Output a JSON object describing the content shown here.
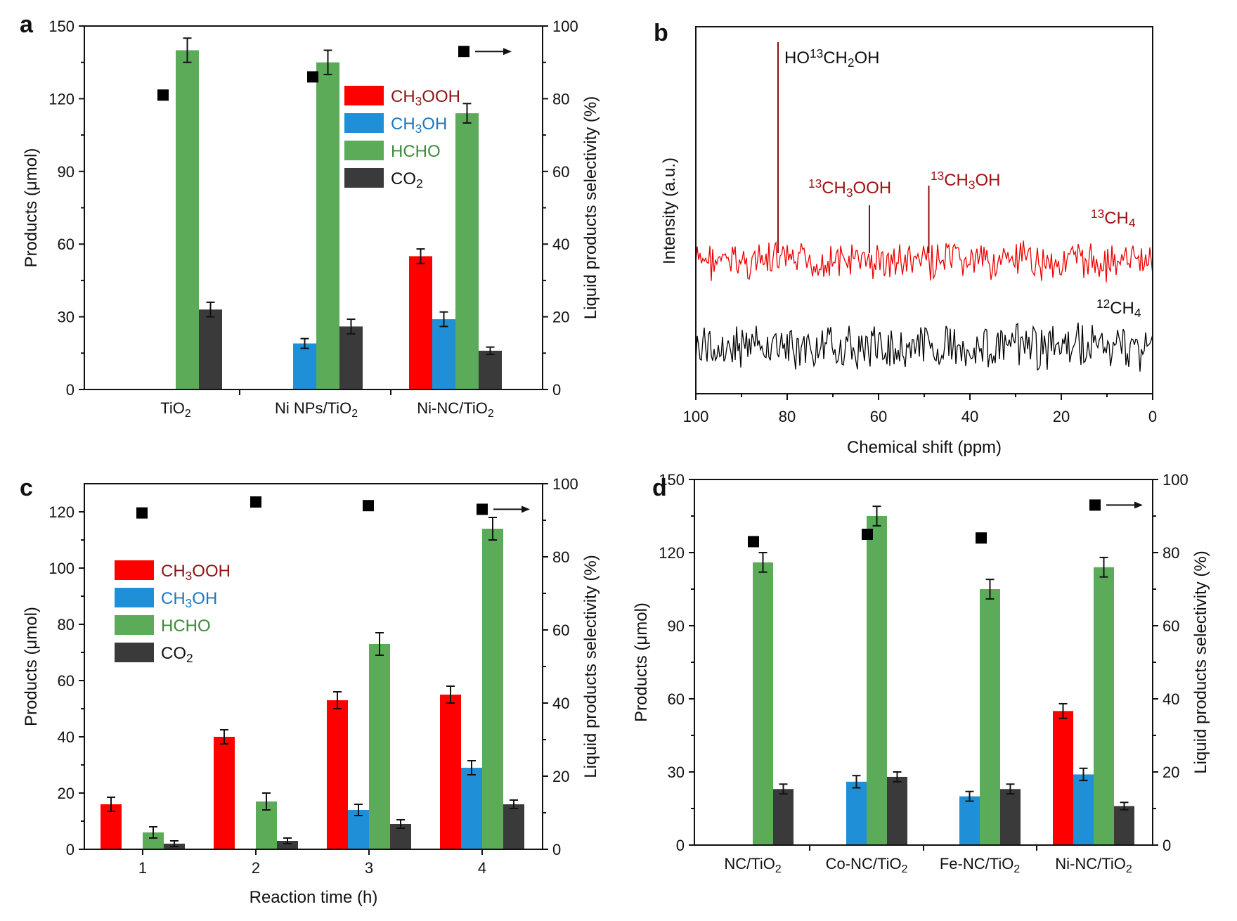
{
  "colors": {
    "CH3OOH": "#ff0000",
    "CH3OH": "#1f8fd8",
    "HCHO": "#5bab58",
    "CO2": "#3a3a3a",
    "marker": "#000000",
    "legend_text": {
      "CH3OOH": "#8b1414",
      "CH3OH": "#1a78c2",
      "HCHO": "#3d8a3a",
      "CO2": "#111111"
    },
    "spec_13C": "#ee0000",
    "spec_12C": "#000000",
    "spec_label_13C": "#a01010"
  },
  "chart_data": [
    {
      "panel": "a",
      "type": "bar",
      "categories": [
        {
          "base": "TiO",
          "sub": "2"
        },
        {
          "base": "Ni NPs/TiO",
          "sub": "2"
        },
        {
          "base": "Ni-NC/TiO",
          "sub": "2"
        }
      ],
      "series": [
        {
          "key": "CH3OOH",
          "legend": {
            "base": "CH",
            "sub": "3",
            "rest": "OOH"
          },
          "values": [
            0,
            0,
            55
          ],
          "errors": [
            0,
            0,
            3
          ]
        },
        {
          "key": "CH3OH",
          "legend": {
            "base": "CH",
            "sub": "3",
            "rest": "OH"
          },
          "values": [
            0,
            19,
            29
          ],
          "errors": [
            0,
            2,
            3
          ]
        },
        {
          "key": "HCHO",
          "legend": {
            "base": "HCHO",
            "sub": "",
            "rest": ""
          },
          "values": [
            140,
            135,
            114
          ],
          "errors": [
            5,
            5,
            4
          ]
        },
        {
          "key": "CO2",
          "legend": {
            "base": "CO",
            "sub": "2",
            "rest": ""
          },
          "values": [
            33,
            26,
            16
          ],
          "errors": [
            3,
            3,
            1.5
          ]
        }
      ],
      "selectivity": [
        81,
        86,
        93
      ],
      "ylabel": "Products (μmol)",
      "ylabel_right": "Liquid products selectivity (%)",
      "ylim": [
        0,
        150
      ],
      "yticks": [
        "0",
        "30",
        "60",
        "90",
        "120",
        "150"
      ],
      "ylim_right": [
        0,
        100
      ],
      "yticks_right": [
        "0",
        "20",
        "40",
        "60",
        "80",
        "100"
      ],
      "legend_position": "upper-right",
      "marker_note": "arrow pointing right"
    },
    {
      "panel": "b",
      "type": "line",
      "xlabel": "Chemical shift (ppm)",
      "ylabel": "Intensity (a.u.)",
      "xlim": [
        100,
        0
      ],
      "xticks": [
        "100",
        "80",
        "60",
        "40",
        "20",
        "0"
      ],
      "series": [
        {
          "name": "13CH4",
          "label": {
            "sup": "13",
            "base": "CH",
            "sub": "4"
          },
          "peaks": [
            {
              "ppm": 82,
              "label": {
                "pre": "HO",
                "sup": "13",
                "mid": "CH",
                "sub": "2",
                "post": "OH"
              }
            },
            {
              "ppm": 62,
              "label": {
                "pre": "",
                "sup": "13",
                "mid": "CH",
                "sub": "3",
                "post": "OOH"
              }
            },
            {
              "ppm": 49,
              "label": {
                "pre": "",
                "sup": "13",
                "mid": "CH",
                "sub": "3",
                "post": "OH"
              }
            }
          ]
        },
        {
          "name": "12CH4",
          "label": {
            "sup": "12",
            "base": "CH",
            "sub": "4"
          },
          "peaks": []
        }
      ]
    },
    {
      "panel": "c",
      "type": "bar",
      "xlabel": "Reaction time (h)",
      "categories": [
        "1",
        "2",
        "3",
        "4"
      ],
      "series": [
        {
          "key": "CH3OOH",
          "legend": {
            "base": "CH",
            "sub": "3",
            "rest": "OOH"
          },
          "values": [
            16,
            40,
            53,
            55
          ],
          "errors": [
            2.5,
            2.5,
            3,
            3
          ]
        },
        {
          "key": "CH3OH",
          "legend": {
            "base": "CH",
            "sub": "3",
            "rest": "OH"
          },
          "values": [
            0,
            0,
            14,
            29
          ],
          "errors": [
            0,
            0,
            2,
            2.5
          ]
        },
        {
          "key": "HCHO",
          "legend": {
            "base": "HCHO",
            "sub": "",
            "rest": ""
          },
          "values": [
            6,
            17,
            73,
            114
          ],
          "errors": [
            2,
            3,
            4,
            4
          ]
        },
        {
          "key": "CO2",
          "legend": {
            "base": "CO",
            "sub": "2",
            "rest": ""
          },
          "values": [
            2,
            3,
            9,
            16
          ],
          "errors": [
            1,
            1,
            1.5,
            1.5
          ]
        }
      ],
      "selectivity": [
        92,
        95,
        94,
        93
      ],
      "ylabel": "Products (μmol)",
      "ylabel_right": "Liquid products selectivity (%)",
      "ylim": [
        0,
        130
      ],
      "yticks": [
        "0",
        "20",
        "40",
        "60",
        "80",
        "100",
        "120"
      ],
      "ylim_right": [
        0,
        100
      ],
      "yticks_right": [
        "0",
        "20",
        "40",
        "60",
        "80",
        "100"
      ],
      "legend_position": "upper-left",
      "marker_note": "arrow pointing right"
    },
    {
      "panel": "d",
      "type": "bar",
      "categories": [
        {
          "base": "NC/TiO",
          "sub": "2"
        },
        {
          "base": "Co-NC/TiO",
          "sub": "2"
        },
        {
          "base": "Fe-NC/TiO",
          "sub": "2"
        },
        {
          "base": "Ni-NC/TiO",
          "sub": "2"
        }
      ],
      "series": [
        {
          "key": "CH3OOH",
          "values": [
            0,
            0,
            0,
            55
          ],
          "errors": [
            0,
            0,
            0,
            3
          ]
        },
        {
          "key": "CH3OH",
          "values": [
            0,
            26,
            20,
            29
          ],
          "errors": [
            0,
            2.5,
            2,
            2.5
          ]
        },
        {
          "key": "HCHO",
          "values": [
            116,
            135,
            105,
            114
          ],
          "errors": [
            4,
            4,
            4,
            4
          ]
        },
        {
          "key": "CO2",
          "values": [
            23,
            28,
            23,
            16
          ],
          "errors": [
            2,
            2,
            2,
            1.5
          ]
        }
      ],
      "selectivity": [
        83,
        85,
        84,
        93
      ],
      "ylabel": "Products (μmol)",
      "ylabel_right": "Liquid products selectivity (%)",
      "ylim": [
        0,
        150
      ],
      "yticks": [
        "0",
        "30",
        "60",
        "90",
        "120",
        "150"
      ],
      "ylim_right": [
        0,
        100
      ],
      "yticks_right": [
        "0",
        "20",
        "40",
        "60",
        "80",
        "100"
      ],
      "marker_note": "arrow pointing right"
    }
  ]
}
